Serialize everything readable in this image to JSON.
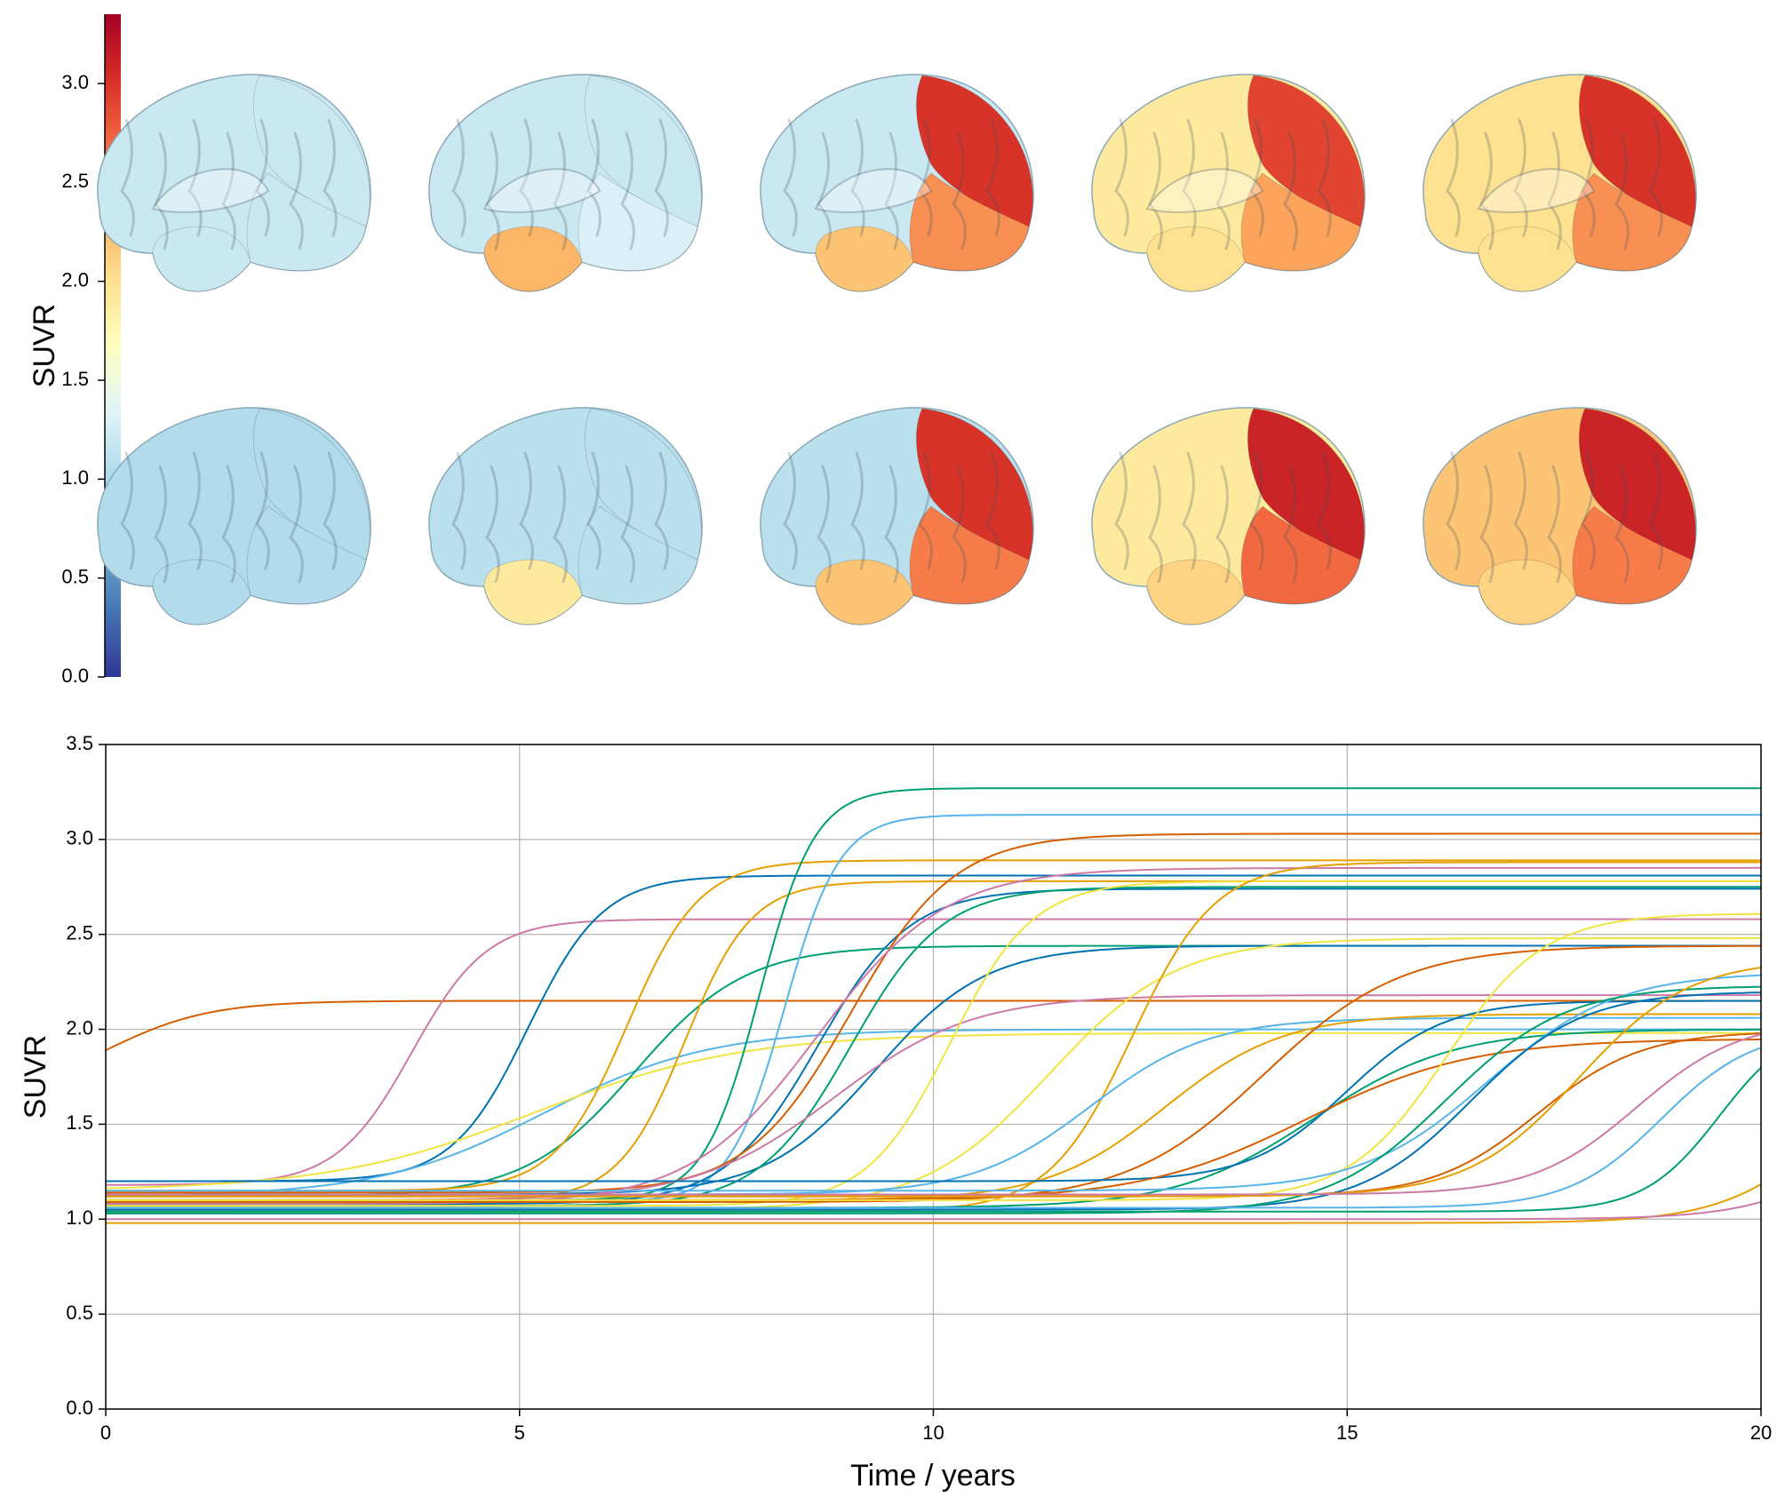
{
  "colorbar": {
    "label": "SUVR",
    "range": [
      0,
      3.35
    ],
    "ticks": [
      "0.0",
      "0.5",
      "1.0",
      "1.5",
      "2.0",
      "2.5",
      "3.0"
    ],
    "tick_values": [
      0.0,
      0.5,
      1.0,
      1.5,
      2.0,
      2.5,
      3.0
    ],
    "colormap": [
      "#313695",
      "#4575b4",
      "#74add1",
      "#abd9e9",
      "#e0f3f8",
      "#ffffbf",
      "#fee090",
      "#fdae61",
      "#f46d43",
      "#d73027",
      "#a50026"
    ]
  },
  "brains": {
    "medial_row": [
      "stage-1",
      "stage-2",
      "stage-3",
      "stage-4",
      "stage-5"
    ],
    "lateral_row": [
      "stage-1",
      "stage-2",
      "stage-3",
      "stage-4",
      "stage-5"
    ]
  },
  "chart_data": {
    "type": "line",
    "xlabel": "Time / years",
    "ylabel": "SUVR",
    "xlim": [
      0,
      20
    ],
    "ylim": [
      0,
      3.5
    ],
    "xticks": [
      "0",
      "5",
      "10",
      "15",
      "20"
    ],
    "xtick_values": [
      0,
      5,
      10,
      15,
      20
    ],
    "yticks": [
      "0.0",
      "0.5",
      "1.0",
      "1.5",
      "2.0",
      "2.5",
      "3.0",
      "3.5"
    ],
    "ytick_values": [
      0,
      0.5,
      1.0,
      1.5,
      2.0,
      2.5,
      3.0,
      3.5
    ],
    "grid": true,
    "series_shape": "sigmoid",
    "series": [
      {
        "color": "#d55e00",
        "start": 1.63,
        "plateau": 2.15,
        "midpoint": 0.0,
        "steepness": 1.6
      },
      {
        "color": "#cc79a7",
        "start": 1.18,
        "plateau": 2.58,
        "midpoint": 3.7,
        "steepness": 2.2
      },
      {
        "color": "#0072b2",
        "start": 1.2,
        "plateau": 2.81,
        "midpoint": 5.1,
        "steepness": 2.2
      },
      {
        "color": "#56b4e9",
        "start": 1.12,
        "plateau": 2.0,
        "midpoint": 5.3,
        "steepness": 1.0
      },
      {
        "color": "#f0e442",
        "start": 1.15,
        "plateau": 1.98,
        "midpoint": 5.2,
        "steepness": 0.8
      },
      {
        "color": "#009e73",
        "start": 1.12,
        "plateau": 2.44,
        "midpoint": 6.4,
        "steepness": 1.5
      },
      {
        "color": "#e69f00",
        "start": 1.15,
        "plateau": 2.89,
        "midpoint": 6.3,
        "steepness": 2.3
      },
      {
        "color": "#e69f00",
        "start": 1.1,
        "plateau": 2.78,
        "midpoint": 7.0,
        "steepness": 2.5
      },
      {
        "color": "#009e73",
        "start": 1.1,
        "plateau": 3.27,
        "midpoint": 7.9,
        "steepness": 3.0
      },
      {
        "color": "#56b4e9",
        "start": 1.09,
        "plateau": 3.13,
        "midpoint": 8.2,
        "steepness": 3.0
      },
      {
        "color": "#0072b2",
        "start": 1.08,
        "plateau": 2.74,
        "midpoint": 8.6,
        "steepness": 1.8
      },
      {
        "color": "#d55e00",
        "start": 1.14,
        "plateau": 3.03,
        "midpoint": 9.0,
        "steepness": 1.6
      },
      {
        "color": "#0072b2",
        "start": 1.13,
        "plateau": 2.44,
        "midpoint": 9.3,
        "steepness": 1.5
      },
      {
        "color": "#cc79a7",
        "start": 1.08,
        "plateau": 2.85,
        "midpoint": 8.6,
        "steepness": 1.3
      },
      {
        "color": "#009e73",
        "start": 1.07,
        "plateau": 2.75,
        "midpoint": 9.0,
        "steepness": 1.8
      },
      {
        "color": "#cc79a7",
        "start": 1.1,
        "plateau": 2.18,
        "midpoint": 8.8,
        "steepness": 1.2
      },
      {
        "color": "#f0e442",
        "start": 1.07,
        "plateau": 2.78,
        "midpoint": 10.2,
        "steepness": 2.0
      },
      {
        "color": "#f0e442",
        "start": 1.05,
        "plateau": 2.48,
        "midpoint": 11.4,
        "steepness": 1.3
      },
      {
        "color": "#e69f00",
        "start": 1.04,
        "plateau": 2.88,
        "midpoint": 12.4,
        "steepness": 2.0
      },
      {
        "color": "#56b4e9",
        "start": 1.13,
        "plateau": 2.06,
        "midpoint": 11.9,
        "steepness": 1.4
      },
      {
        "color": "#e69f00",
        "start": 1.1,
        "plateau": 2.08,
        "midpoint": 12.8,
        "steepness": 1.4
      },
      {
        "color": "#d55e00",
        "start": 1.09,
        "plateau": 2.44,
        "midpoint": 14.0,
        "steepness": 1.2
      },
      {
        "color": "#009e73",
        "start": 1.06,
        "plateau": 2.0,
        "midpoint": 14.6,
        "steepness": 1.2
      },
      {
        "color": "#0072b2",
        "start": 1.2,
        "plateau": 2.15,
        "midpoint": 15.0,
        "steepness": 1.7
      },
      {
        "color": "#d55e00",
        "start": 1.1,
        "plateau": 1.95,
        "midpoint": 14.5,
        "steepness": 1.0
      },
      {
        "color": "#f0e442",
        "start": 1.1,
        "plateau": 2.61,
        "midpoint": 16.2,
        "steepness": 1.7
      },
      {
        "color": "#56b4e9",
        "start": 1.15,
        "plateau": 2.3,
        "midpoint": 16.7,
        "steepness": 1.3
      },
      {
        "color": "#0072b2",
        "start": 1.05,
        "plateau": 2.2,
        "midpoint": 16.5,
        "steepness": 1.5
      },
      {
        "color": "#009e73",
        "start": 1.03,
        "plateau": 2.23,
        "midpoint": 16.2,
        "steepness": 1.4
      },
      {
        "color": "#d55e00",
        "start": 1.12,
        "plateau": 1.99,
        "midpoint": 17.3,
        "steepness": 1.6
      },
      {
        "color": "#e69f00",
        "start": 1.12,
        "plateau": 2.37,
        "midpoint": 17.8,
        "steepness": 1.5
      },
      {
        "color": "#cc79a7",
        "start": 1.13,
        "plateau": 2.05,
        "midpoint": 18.5,
        "steepness": 1.6
      },
      {
        "color": "#009e73",
        "start": 1.04,
        "plateau": 2.05,
        "midpoint": 19.5,
        "steepness": 2.2
      },
      {
        "color": "#56b4e9",
        "start": 1.06,
        "plateau": 2.0,
        "midpoint": 18.8,
        "steepness": 1.8
      },
      {
        "color": "#e69f00",
        "start": 0.98,
        "plateau": 2.1,
        "midpoint": 21.0,
        "steepness": 1.5
      },
      {
        "color": "#cc79a7",
        "start": 1.0,
        "plateau": 1.95,
        "midpoint": 21.5,
        "steepness": 1.5
      }
    ]
  }
}
